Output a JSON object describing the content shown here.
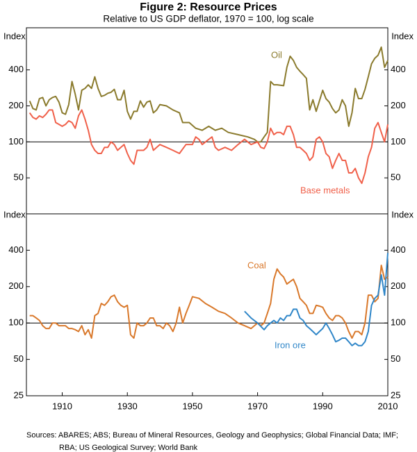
{
  "title": "Figure 2: Resource Prices",
  "subtitle": "Relative to US GDP deflator, 1970 = 100, log scale",
  "source": [
    "Sources:  ABARES; ABS; Bureau of Mineral Resources, Geology and Geophysics; Global Financial Data; IMF;",
    "RBA; US Geological Survey; World Bank"
  ],
  "chart_data": [
    {
      "type": "line",
      "y_label": "Index",
      "log_scale": true,
      "reference_line": 100,
      "xlim": [
        1899,
        2010
      ],
      "ylim": [
        25,
        900
      ],
      "yticks": [
        50,
        100,
        200,
        400
      ],
      "series": [
        {
          "name": "Oil",
          "color": "#8a7a2c",
          "x": [
            1900,
            1901,
            1902,
            1903,
            1904,
            1905,
            1906,
            1907,
            1908,
            1909,
            1910,
            1911,
            1912,
            1913,
            1914,
            1915,
            1916,
            1917,
            1918,
            1919,
            1920,
            1921,
            1922,
            1923,
            1924,
            1925,
            1926,
            1927,
            1928,
            1929,
            1930,
            1931,
            1932,
            1933,
            1934,
            1935,
            1936,
            1937,
            1938,
            1939,
            1940,
            1942,
            1944,
            1946,
            1947,
            1949,
            1951,
            1953,
            1955,
            1957,
            1959,
            1961,
            1964,
            1967,
            1969,
            1970,
            1971,
            1972,
            1973,
            1974,
            1975,
            1976,
            1978,
            1979,
            1980,
            1981,
            1982,
            1983,
            1984,
            1985,
            1986,
            1987,
            1988,
            1989,
            1990,
            1991,
            1992,
            1993,
            1994,
            1995,
            1996,
            1997,
            1998,
            1999,
            2000,
            2001,
            2002,
            2003,
            2004,
            2005,
            2006,
            2007,
            2008,
            2009,
            2010
          ],
          "values": [
            220,
            190,
            185,
            230,
            235,
            200,
            225,
            235,
            240,
            215,
            175,
            170,
            205,
            320,
            250,
            185,
            270,
            280,
            300,
            280,
            350,
            280,
            240,
            245,
            255,
            260,
            275,
            225,
            225,
            270,
            180,
            155,
            180,
            180,
            220,
            195,
            215,
            220,
            175,
            185,
            205,
            200,
            185,
            175,
            145,
            145,
            130,
            125,
            135,
            125,
            130,
            120,
            115,
            110,
            105,
            100,
            100,
            110,
            120,
            320,
            300,
            300,
            295,
            420,
            520,
            480,
            420,
            390,
            365,
            340,
            185,
            225,
            180,
            220,
            270,
            230,
            215,
            190,
            175,
            185,
            225,
            200,
            135,
            175,
            280,
            230,
            230,
            275,
            350,
            450,
            500,
            530,
            620,
            420,
            480
          ]
        },
        {
          "name": "Base metals",
          "color": "#f0604a",
          "x": [
            1900,
            1901,
            1902,
            1903,
            1904,
            1905,
            1906,
            1907,
            1908,
            1909,
            1910,
            1911,
            1912,
            1913,
            1914,
            1915,
            1916,
            1917,
            1918,
            1919,
            1920,
            1921,
            1922,
            1923,
            1924,
            1925,
            1926,
            1927,
            1928,
            1929,
            1930,
            1931,
            1932,
            1933,
            1934,
            1935,
            1936,
            1937,
            1938,
            1939,
            1940,
            1942,
            1944,
            1946,
            1948,
            1950,
            1951,
            1952,
            1953,
            1955,
            1956,
            1957,
            1958,
            1960,
            1962,
            1964,
            1966,
            1968,
            1970,
            1971,
            1972,
            1973,
            1974,
            1975,
            1976,
            1977,
            1978,
            1979,
            1980,
            1981,
            1982,
            1983,
            1984,
            1985,
            1986,
            1987,
            1988,
            1989,
            1990,
            1991,
            1992,
            1993,
            1994,
            1995,
            1996,
            1997,
            1998,
            1999,
            2000,
            2001,
            2002,
            2003,
            2004,
            2005,
            2006,
            2007,
            2008,
            2009,
            2010
          ],
          "values": [
            175,
            160,
            155,
            165,
            160,
            170,
            185,
            185,
            145,
            140,
            135,
            140,
            150,
            145,
            130,
            165,
            185,
            155,
            125,
            95,
            85,
            80,
            80,
            90,
            90,
            100,
            95,
            85,
            90,
            95,
            80,
            70,
            65,
            85,
            85,
            85,
            90,
            105,
            85,
            90,
            95,
            90,
            85,
            80,
            95,
            95,
            110,
            105,
            95,
            105,
            110,
            90,
            85,
            90,
            85,
            95,
            105,
            95,
            100,
            90,
            88,
            100,
            130,
            115,
            120,
            120,
            115,
            135,
            135,
            115,
            90,
            90,
            85,
            80,
            70,
            75,
            105,
            110,
            100,
            80,
            75,
            60,
            70,
            80,
            70,
            70,
            55,
            55,
            60,
            50,
            45,
            55,
            75,
            90,
            130,
            145,
            120,
            100,
            140
          ]
        }
      ]
    },
    {
      "type": "line",
      "y_label": "Index",
      "log_scale": true,
      "reference_line": 100,
      "xlim": [
        1899,
        2010
      ],
      "ylim": [
        25,
        800
      ],
      "yticks": [
        25,
        50,
        100,
        200,
        400
      ],
      "xticks": [
        1910,
        1930,
        1950,
        1970,
        1990,
        2010
      ],
      "series": [
        {
          "name": "Coal",
          "color": "#d9782a",
          "x": [
            1900,
            1901,
            1902,
            1903,
            1904,
            1905,
            1906,
            1907,
            1908,
            1909,
            1910,
            1911,
            1912,
            1913,
            1914,
            1915,
            1916,
            1917,
            1918,
            1919,
            1920,
            1921,
            1922,
            1923,
            1924,
            1925,
            1926,
            1927,
            1928,
            1929,
            1930,
            1931,
            1932,
            1933,
            1934,
            1935,
            1936,
            1937,
            1938,
            1939,
            1940,
            1941,
            1942,
            1943,
            1944,
            1945,
            1946,
            1947,
            1948,
            1949,
            1950,
            1952,
            1954,
            1956,
            1958,
            1960,
            1962,
            1964,
            1966,
            1968,
            1970,
            1971,
            1972,
            1973,
            1974,
            1975,
            1976,
            1977,
            1978,
            1979,
            1980,
            1981,
            1982,
            1983,
            1984,
            1985,
            1986,
            1987,
            1988,
            1989,
            1990,
            1991,
            1992,
            1993,
            1994,
            1995,
            1996,
            1997,
            1998,
            1999,
            2000,
            2001,
            2002,
            2003,
            2004,
            2005,
            2006,
            2007,
            2008,
            2009,
            2010
          ],
          "values": [
            115,
            115,
            110,
            105,
            95,
            90,
            90,
            100,
            100,
            95,
            95,
            95,
            90,
            90,
            88,
            85,
            95,
            80,
            88,
            75,
            115,
            120,
            145,
            140,
            150,
            165,
            170,
            150,
            140,
            135,
            140,
            80,
            75,
            100,
            95,
            95,
            100,
            110,
            110,
            95,
            95,
            90,
            100,
            95,
            85,
            100,
            135,
            100,
            120,
            140,
            165,
            160,
            145,
            135,
            125,
            120,
            110,
            100,
            95,
            90,
            100,
            95,
            100,
            120,
            145,
            230,
            280,
            255,
            240,
            210,
            220,
            230,
            200,
            160,
            150,
            140,
            120,
            120,
            140,
            138,
            135,
            120,
            110,
            105,
            115,
            115,
            110,
            100,
            85,
            75,
            85,
            85,
            80,
            100,
            170,
            170,
            150,
            160,
            300,
            230,
            240
          ]
        },
        {
          "name": "Iron ore",
          "color": "#2f86c8",
          "x": [
            1966,
            1968,
            1970,
            1972,
            1973,
            1974,
            1975,
            1976,
            1977,
            1978,
            1979,
            1980,
            1981,
            1982,
            1983,
            1984,
            1985,
            1986,
            1987,
            1988,
            1989,
            1990,
            1991,
            1992,
            1993,
            1994,
            1995,
            1996,
            1997,
            1998,
            1999,
            2000,
            2001,
            2002,
            2003,
            2004,
            2005,
            2006,
            2007,
            2008,
            2009,
            2010
          ],
          "values": [
            125,
            110,
            100,
            88,
            95,
            100,
            105,
            100,
            110,
            105,
            115,
            115,
            130,
            130,
            110,
            105,
            95,
            90,
            85,
            80,
            85,
            90,
            100,
            90,
            80,
            70,
            72,
            75,
            75,
            70,
            65,
            68,
            65,
            65,
            70,
            85,
            140,
            160,
            170,
            250,
            170,
            380
          ]
        }
      ]
    }
  ]
}
